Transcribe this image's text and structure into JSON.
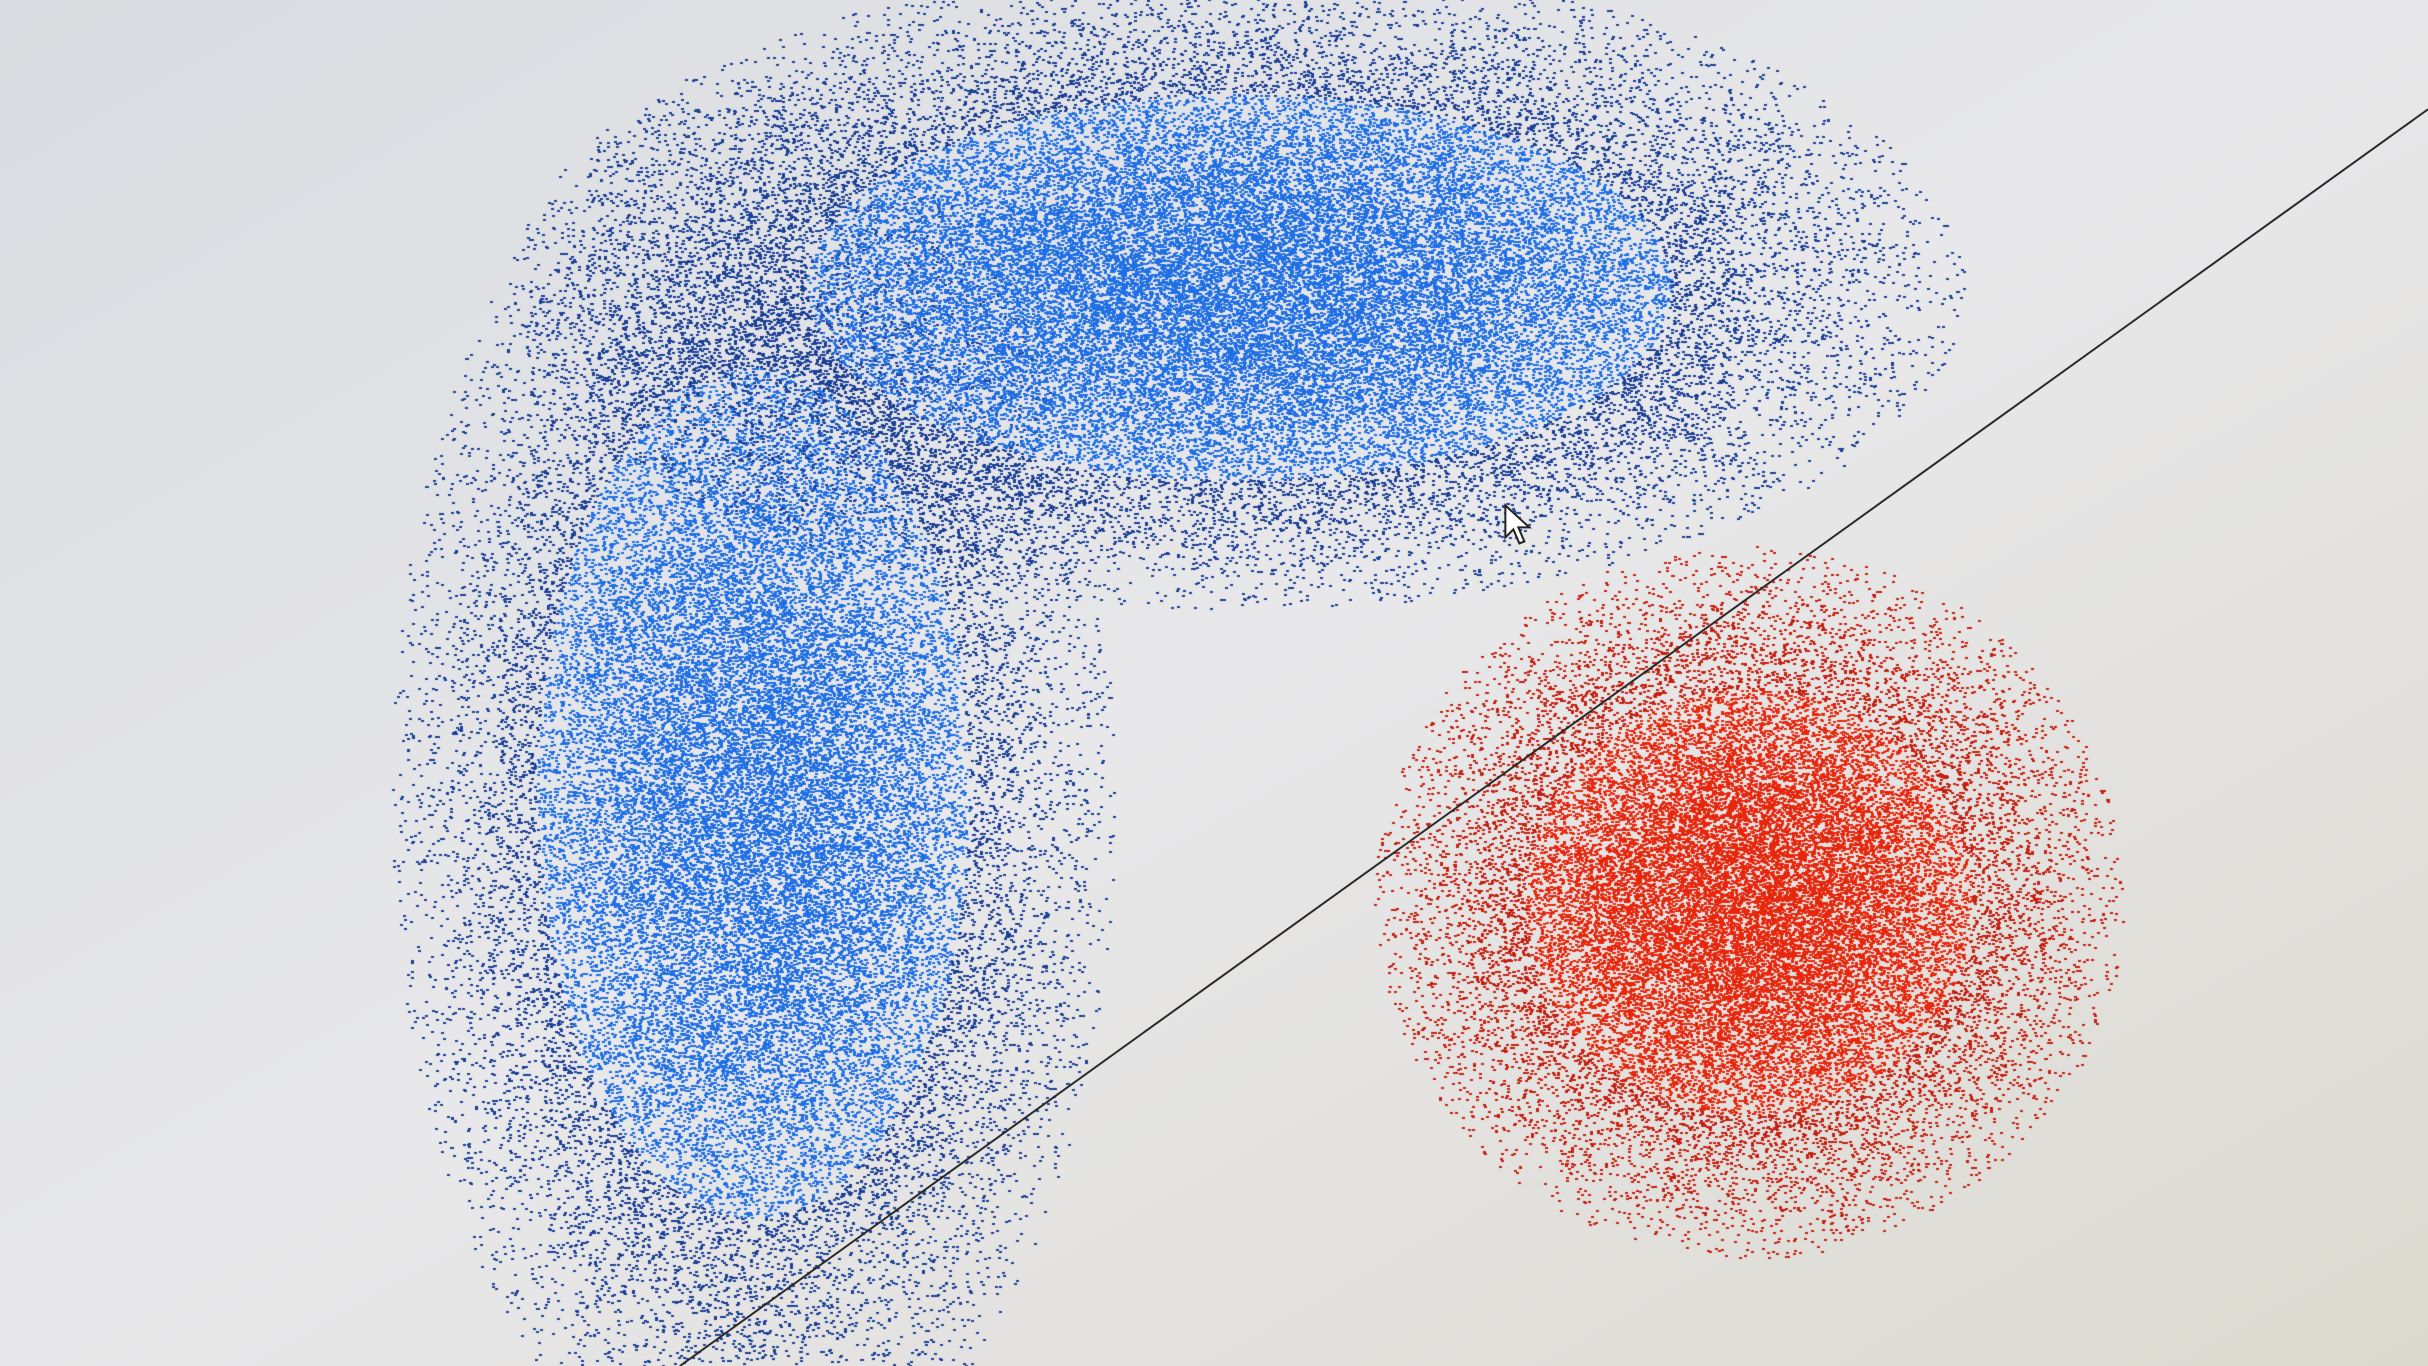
{
  "chart_data": {
    "type": "scatter",
    "title": "",
    "xlabel": "",
    "ylabel": "",
    "xlim": [
      0,
      1
    ],
    "ylim": [
      0,
      1
    ],
    "grid": false,
    "legend": "none",
    "series": [
      {
        "class": "blue",
        "color": "#1f6fe6",
        "edge_color": "#1a3f96",
        "clusters": [
          {
            "center": [
              0.31,
              0.42
            ],
            "sd": [
              0.06,
              0.21
            ],
            "points": 38000
          },
          {
            "center": [
              0.51,
              0.79
            ],
            "sd": [
              0.12,
              0.095
            ],
            "points": 42000
          }
        ]
      },
      {
        "class": "red",
        "color": "#e8260c",
        "edge_color": "#c61f10",
        "clusters": [
          {
            "center": [
              0.72,
              0.34
            ],
            "sd": [
              0.062,
              0.105
            ],
            "points": 30000
          }
        ]
      }
    ],
    "decision_boundary": {
      "type": "line",
      "x": [
        0.28,
        1.0
      ],
      "y": [
        0.0,
        0.92
      ],
      "color": "#2a2a2a"
    },
    "cursor": {
      "x": 0.62,
      "y": 0.63
    }
  }
}
